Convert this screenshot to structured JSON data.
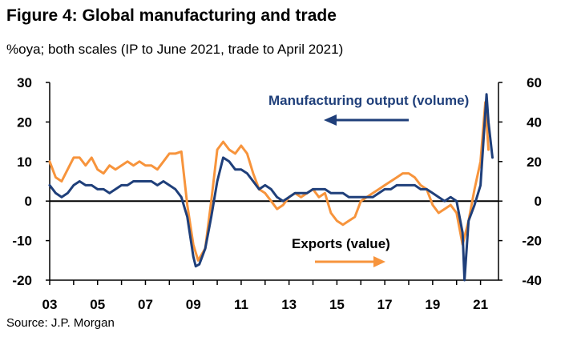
{
  "title": "Figure 4: Global manufacturing and trade",
  "subtitle": "%oya; both scales (IP to June 2021, trade to April 2021)",
  "source": "Source: J.P. Morgan",
  "colors": {
    "manufacturing": "#1f3f7a",
    "exports": "#f7943c",
    "axis": "#000000"
  },
  "chart_data": {
    "type": "line",
    "title": "Figure 4: Global manufacturing and trade",
    "xlabel": "",
    "ylabel": "%oya",
    "x_range": [
      2003.0,
      2021.75
    ],
    "left_axis": {
      "range": [
        -20,
        30
      ],
      "ticks": [
        "30",
        "20",
        "10",
        "0",
        "-10",
        "-20"
      ],
      "tick_values": [
        30,
        20,
        10,
        0,
        -10,
        -20
      ]
    },
    "right_axis": {
      "range": [
        -40,
        60
      ],
      "ticks": [
        "60",
        "40",
        "20",
        "0",
        "-20",
        "-40"
      ],
      "tick_values": [
        60,
        40,
        20,
        0,
        -20,
        -40
      ]
    },
    "x_ticks": [
      "03",
      "05",
      "07",
      "09",
      "11",
      "13",
      "15",
      "17",
      "19",
      "21"
    ],
    "x_tick_values": [
      2003,
      2005,
      2007,
      2009,
      2011,
      2013,
      2015,
      2017,
      2019,
      2021
    ],
    "annotations": {
      "manufacturing": "Manufacturing output (volume)",
      "exports": "Exports (value)"
    },
    "series": [
      {
        "name": "Manufacturing output (volume)",
        "axis": "left",
        "x": [
          2003.0,
          2003.25,
          2003.5,
          2003.75,
          2004.0,
          2004.25,
          2004.5,
          2004.75,
          2005.0,
          2005.25,
          2005.5,
          2005.75,
          2006.0,
          2006.25,
          2006.5,
          2006.75,
          2007.0,
          2007.25,
          2007.5,
          2007.75,
          2008.0,
          2008.25,
          2008.5,
          2008.75,
          2009.0,
          2009.1,
          2009.25,
          2009.5,
          2009.75,
          2010.0,
          2010.25,
          2010.5,
          2010.75,
          2011.0,
          2011.25,
          2011.5,
          2011.75,
          2012.0,
          2012.25,
          2012.5,
          2012.75,
          2013.0,
          2013.25,
          2013.5,
          2013.75,
          2014.0,
          2014.25,
          2014.5,
          2014.75,
          2015.0,
          2015.25,
          2015.5,
          2015.75,
          2016.0,
          2016.25,
          2016.5,
          2016.75,
          2017.0,
          2017.25,
          2017.5,
          2017.75,
          2018.0,
          2018.25,
          2018.5,
          2018.75,
          2019.0,
          2019.25,
          2019.5,
          2019.75,
          2020.0,
          2020.25,
          2020.33,
          2020.5,
          2020.75,
          2021.0,
          2021.25,
          2021.33,
          2021.5
        ],
        "values": [
          4,
          2,
          1,
          2,
          4,
          5,
          4,
          4,
          3,
          3,
          2,
          3,
          4,
          4,
          5,
          5,
          5,
          5,
          4,
          5,
          4,
          3,
          1,
          -4,
          -14,
          -16.5,
          -16,
          -12,
          -4,
          5,
          11,
          10,
          8,
          8,
          7,
          5,
          3,
          4,
          3,
          1,
          0,
          1,
          2,
          2,
          2,
          3,
          3,
          3,
          2,
          2,
          2,
          1,
          1,
          1,
          1,
          1,
          2,
          3,
          3,
          4,
          4,
          4,
          4,
          3,
          3,
          2,
          1,
          0,
          1,
          0,
          -8,
          -20,
          -5,
          -1,
          4,
          27,
          20,
          11
        ]
      },
      {
        "name": "Exports (value)",
        "axis": "right",
        "x": [
          2003.0,
          2003.25,
          2003.5,
          2003.75,
          2004.0,
          2004.25,
          2004.5,
          2004.75,
          2005.0,
          2005.25,
          2005.5,
          2005.75,
          2006.0,
          2006.25,
          2006.5,
          2006.75,
          2007.0,
          2007.25,
          2007.5,
          2007.75,
          2008.0,
          2008.25,
          2008.5,
          2008.75,
          2009.0,
          2009.2,
          2009.5,
          2009.75,
          2010.0,
          2010.25,
          2010.5,
          2010.75,
          2011.0,
          2011.25,
          2011.5,
          2011.75,
          2012.0,
          2012.25,
          2012.5,
          2012.75,
          2013.0,
          2013.25,
          2013.5,
          2013.75,
          2014.0,
          2014.25,
          2014.5,
          2014.75,
          2015.0,
          2015.25,
          2015.5,
          2015.75,
          2016.0,
          2016.25,
          2016.5,
          2016.75,
          2017.0,
          2017.25,
          2017.5,
          2017.75,
          2018.0,
          2018.25,
          2018.5,
          2018.75,
          2019.0,
          2019.25,
          2019.5,
          2019.75,
          2020.0,
          2020.25,
          2020.5,
          2020.75,
          2021.0,
          2021.2,
          2021.33
        ],
        "values": [
          20,
          12,
          10,
          16,
          22,
          22,
          18,
          22,
          16,
          14,
          18,
          16,
          18,
          20,
          18,
          20,
          18,
          18,
          16,
          20,
          24,
          24,
          25,
          -2,
          -22,
          -30,
          -24,
          0,
          26,
          30,
          26,
          24,
          28,
          24,
          14,
          6,
          4,
          0,
          -4,
          -2,
          2,
          4,
          2,
          4,
          6,
          2,
          4,
          -6,
          -10,
          -12,
          -10,
          -8,
          0,
          2,
          4,
          6,
          8,
          10,
          12,
          14,
          14,
          12,
          8,
          6,
          -2,
          -6,
          -4,
          -2,
          -6,
          -22,
          -10,
          6,
          20,
          50,
          26
        ]
      }
    ]
  }
}
